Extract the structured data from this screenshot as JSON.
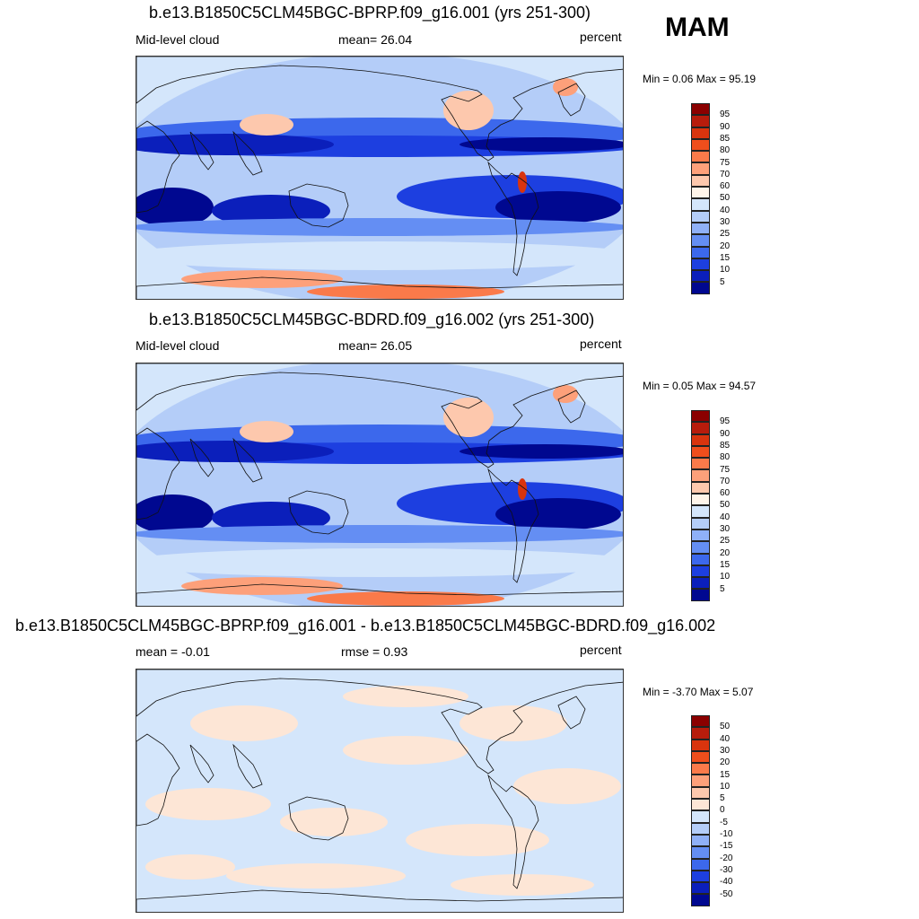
{
  "season": "MAM",
  "panels": [
    {
      "title": "b.e13.B1850C5CLM45BGC-BPRP.f09_g16.001 (yrs 251-300)",
      "left_label": "Mid-level cloud",
      "center_label": "mean=  26.04",
      "right_label": "percent",
      "minmax": "Min =   0.06 Max =  95.19",
      "type": "abs"
    },
    {
      "title": "b.e13.B1850C5CLM45BGC-BDRD.f09_g16.002 (yrs 251-300)",
      "left_label": "Mid-level cloud",
      "center_label": "mean=  26.05",
      "right_label": "percent",
      "minmax": "Min =   0.05 Max =  94.57",
      "type": "abs"
    },
    {
      "title": "b.e13.B1850C5CLM45BGC-BPRP.f09_g16.001 - b.e13.B1850C5CLM45BGC-BDRD.f09_g16.002",
      "left_label": "mean =  -0.01",
      "center_label": "rmse =   0.93",
      "right_label": "percent",
      "minmax": "Min =  -3.70 Max =   5.07",
      "type": "diff"
    }
  ],
  "colorbar_abs": {
    "labels": [
      "95",
      "90",
      "85",
      "80",
      "75",
      "70",
      "60",
      "50",
      "40",
      "30",
      "25",
      "20",
      "15",
      "10",
      "5"
    ],
    "colors": [
      "#8b0000",
      "#b71c0c",
      "#d9340e",
      "#ef4e1c",
      "#fa7a4a",
      "#fda07a",
      "#fdc8ad",
      "#fff5ea",
      "#d4e6fb",
      "#b4cdf8",
      "#8fb0f7",
      "#648ef3",
      "#3c68ec",
      "#1d3fe0",
      "#0b1fbb",
      "#000890"
    ]
  },
  "colorbar_diff": {
    "labels": [
      "50",
      "40",
      "30",
      "20",
      "15",
      "10",
      "5",
      "0",
      "-5",
      "-10",
      "-15",
      "-20",
      "-30",
      "-40",
      "-50"
    ],
    "colors": [
      "#8b0000",
      "#b71c0c",
      "#d9340e",
      "#ef4e1c",
      "#fa7a4a",
      "#fda07a",
      "#fdc8ad",
      "#fde6d6",
      "#d4e6fb",
      "#b4cdf8",
      "#8fb0f7",
      "#648ef3",
      "#3c68ec",
      "#1d3fe0",
      "#0b1fbb",
      "#000890"
    ]
  }
}
